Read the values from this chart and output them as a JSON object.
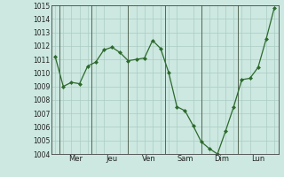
{
  "x_values": [
    0,
    1,
    2,
    3,
    4,
    5,
    6,
    7,
    8,
    9,
    10,
    11,
    12,
    13,
    14,
    15,
    16,
    17,
    18,
    19,
    20,
    21,
    22,
    23,
    24,
    25,
    26,
    27
  ],
  "y_values": [
    1011.2,
    1009.0,
    1009.3,
    1009.2,
    1010.5,
    1010.8,
    1011.7,
    1011.9,
    1011.5,
    1010.9,
    1011.0,
    1011.1,
    1012.4,
    1011.8,
    1010.0,
    1007.5,
    1007.2,
    1006.1,
    1004.9,
    1004.4,
    1004.0,
    1005.7,
    1007.5,
    1009.5,
    1009.6,
    1010.4,
    1012.5,
    1014.8
  ],
  "tick_positions": [
    2.5,
    7,
    11.5,
    16,
    20.5,
    25
  ],
  "tick_labels": [
    "Mer",
    "Jeu",
    "Ven",
    "Sam",
    "Dim",
    "Lun"
  ],
  "day_lines": [
    0.5,
    4.5,
    9,
    13.5,
    18,
    22.5
  ],
  "ylim": [
    1004,
    1015
  ],
  "yticks": [
    1004,
    1005,
    1006,
    1007,
    1008,
    1009,
    1010,
    1011,
    1012,
    1013,
    1014,
    1015
  ],
  "line_color": "#2d6a2d",
  "marker_color": "#2d6a2d",
  "bg_color": "#cce8e0",
  "grid_color": "#aaccC4",
  "vline_color": "#556655",
  "figsize": [
    3.2,
    2.0
  ],
  "dpi": 100
}
